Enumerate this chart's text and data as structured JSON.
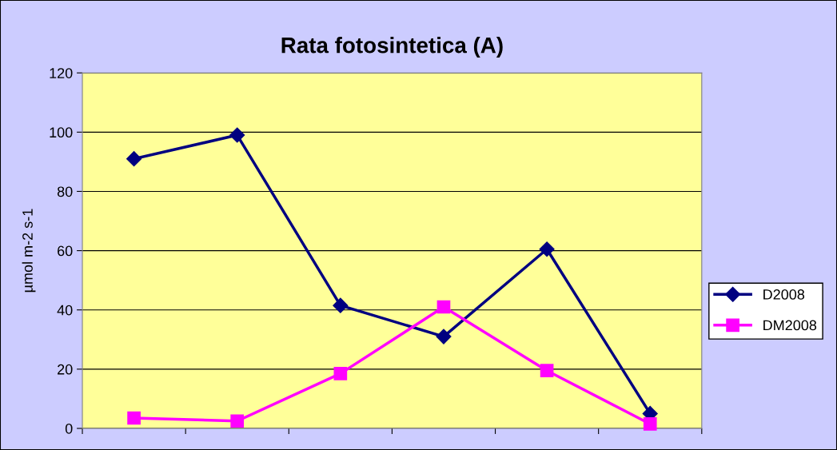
{
  "chart_data": {
    "type": "line",
    "title": "Rata fotosintetica (A)",
    "ylabel": "µmol m-2 s-1",
    "categories": [
      null,
      null,
      null,
      null,
      null,
      null
    ],
    "series": [
      {
        "name": "D2008",
        "color": "#000080",
        "marker": "diamond",
        "values": [
          91,
          99,
          41.5,
          31,
          60.5,
          5
        ]
      },
      {
        "name": "DM2008",
        "color": "#ff00ff",
        "marker": "square",
        "values": [
          3.5,
          2.5,
          18.5,
          41,
          19.5,
          1.5
        ]
      }
    ],
    "ylim": [
      0,
      120
    ],
    "yticks": [
      0,
      20,
      40,
      60,
      80,
      100,
      120
    ],
    "grid": "y",
    "legend": "right",
    "tick_labels": "y",
    "line_style": "solid"
  }
}
